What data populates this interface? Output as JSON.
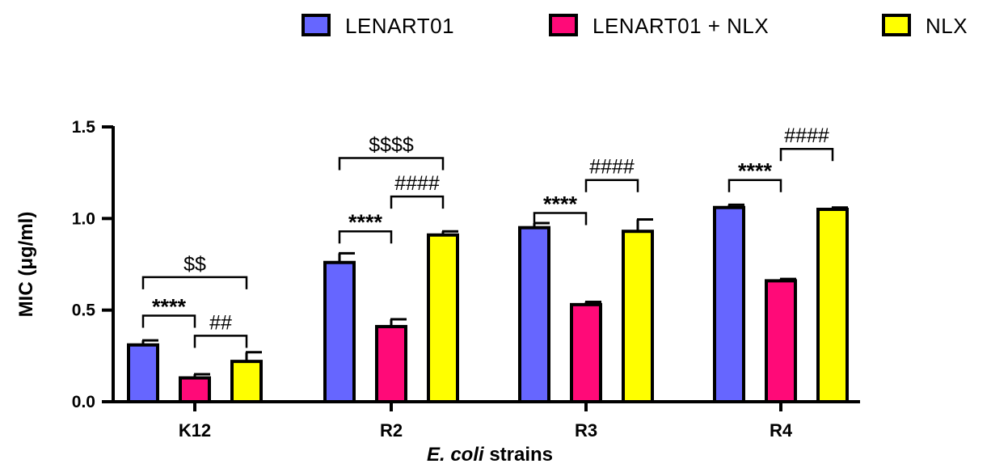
{
  "chart_data": {
    "type": "bar",
    "title": "",
    "xlabel_italic": "E. coli",
    "xlabel_rest": " strains",
    "ylabel": "MIC (μg/ml)",
    "ylim": [
      0,
      1.5
    ],
    "yticks": [
      0.0,
      0.5,
      1.0,
      1.5
    ],
    "ytick_labels": [
      "0.0",
      "0.5",
      "1.0",
      "1.5"
    ],
    "categories": [
      "K12",
      "R2",
      "R3",
      "R4"
    ],
    "series": [
      {
        "name": "LENART01",
        "color": "#6666ff",
        "values": [
          0.31,
          0.76,
          0.95,
          1.06
        ],
        "errors": [
          0.025,
          0.05,
          0.025,
          0.015
        ]
      },
      {
        "name": "LENART01 + NLX",
        "color": "#ff0a78",
        "values": [
          0.13,
          0.41,
          0.53,
          0.66
        ],
        "errors": [
          0.02,
          0.04,
          0.015,
          0.01
        ]
      },
      {
        "name": "NLX",
        "color": "#ffff00",
        "values": [
          0.22,
          0.91,
          0.93,
          1.05
        ],
        "errors": [
          0.05,
          0.02,
          0.065,
          0.01
        ]
      }
    ],
    "legend_position": "top",
    "significance": [
      {
        "category": 0,
        "from": 0,
        "to": 1,
        "label": "****",
        "y": 0.47,
        "style": "star"
      },
      {
        "category": 0,
        "from": 1,
        "to": 2,
        "label": "##",
        "y": 0.36,
        "style": "sym"
      },
      {
        "category": 0,
        "from": 0,
        "to": 2,
        "label": "$$",
        "y": 0.68,
        "style": "sym"
      },
      {
        "category": 1,
        "from": 0,
        "to": 1,
        "label": "****",
        "y": 0.93,
        "style": "star"
      },
      {
        "category": 1,
        "from": 1,
        "to": 2,
        "label": "####",
        "y": 1.12,
        "style": "sym"
      },
      {
        "category": 1,
        "from": 0,
        "to": 2,
        "label": "$$$$",
        "y": 1.33,
        "style": "sym"
      },
      {
        "category": 2,
        "from": 0,
        "to": 1,
        "label": "****",
        "y": 1.03,
        "style": "star"
      },
      {
        "category": 2,
        "from": 1,
        "to": 2,
        "label": "####",
        "y": 1.21,
        "style": "sym"
      },
      {
        "category": 3,
        "from": 0,
        "to": 1,
        "label": "****",
        "y": 1.21,
        "style": "star"
      },
      {
        "category": 3,
        "from": 1,
        "to": 2,
        "label": "####",
        "y": 1.38,
        "style": "sym"
      }
    ]
  }
}
